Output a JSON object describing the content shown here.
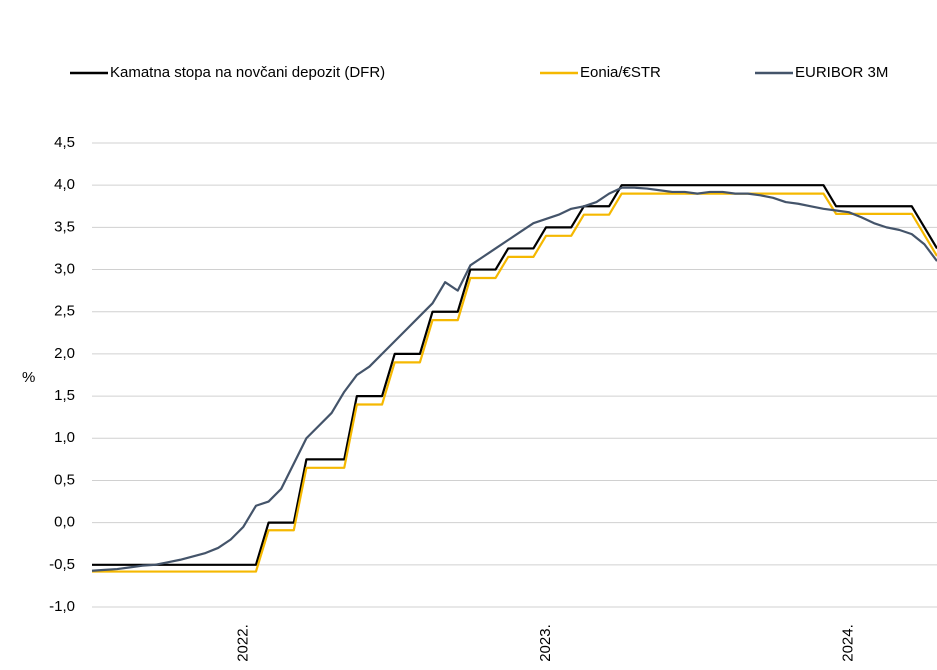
{
  "chart_data": {
    "type": "line",
    "ylabel": "%",
    "categories": [
      null,
      null,
      null,
      null,
      null,
      null,
      null,
      null,
      null,
      null,
      null,
      null,
      "2022.",
      null,
      null,
      null,
      null,
      null,
      null,
      null,
      null,
      null,
      null,
      null,
      null,
      null,
      null,
      null,
      null,
      null,
      null,
      null,
      null,
      null,
      null,
      null,
      "2023.",
      null,
      null,
      null,
      null,
      null,
      null,
      null,
      null,
      null,
      null,
      null,
      null,
      null,
      null,
      null,
      null,
      null,
      null,
      null,
      null,
      null,
      null,
      null,
      "2024.",
      null,
      null,
      null,
      null,
      null,
      null,
      null
    ],
    "series": [
      {
        "name": "Kamatna stopa na novčani depozit (DFR)",
        "color": "#000000",
        "values": [
          -0.5,
          -0.5,
          -0.5,
          -0.5,
          -0.5,
          -0.5,
          -0.5,
          -0.5,
          -0.5,
          -0.5,
          -0.5,
          -0.5,
          -0.5,
          -0.5,
          0,
          0,
          0,
          0.75,
          0.75,
          0.75,
          0.75,
          1.5,
          1.5,
          1.5,
          2,
          2,
          2,
          2.5,
          2.5,
          2.5,
          3,
          3,
          3,
          3.25,
          3.25,
          3.25,
          3.5,
          3.5,
          3.5,
          3.75,
          3.75,
          3.75,
          4,
          4,
          4,
          4,
          4,
          4,
          4,
          4,
          4,
          4,
          4,
          4,
          4,
          4,
          4,
          4,
          4,
          3.75,
          3.75,
          3.75,
          3.75,
          3.75,
          3.75,
          3.75,
          3.5,
          3.25
        ]
      },
      {
        "name": "Eonia/€STR",
        "color": "#f5b800",
        "values": [
          -0.58,
          -0.58,
          -0.58,
          -0.58,
          -0.58,
          -0.58,
          -0.58,
          -0.58,
          -0.58,
          -0.58,
          -0.58,
          -0.58,
          -0.58,
          -0.58,
          -0.09,
          -0.09,
          -0.09,
          0.65,
          0.65,
          0.65,
          0.65,
          1.4,
          1.4,
          1.4,
          1.9,
          1.9,
          1.9,
          2.4,
          2.4,
          2.4,
          2.9,
          2.9,
          2.9,
          3.15,
          3.15,
          3.15,
          3.4,
          3.4,
          3.4,
          3.65,
          3.65,
          3.65,
          3.9,
          3.9,
          3.9,
          3.9,
          3.9,
          3.9,
          3.9,
          3.9,
          3.9,
          3.9,
          3.9,
          3.9,
          3.9,
          3.9,
          3.9,
          3.9,
          3.9,
          3.66,
          3.66,
          3.66,
          3.66,
          3.66,
          3.66,
          3.66,
          3.41,
          3.16
        ]
      },
      {
        "name": "EURIBOR 3M",
        "color": "#44546a",
        "values": [
          -0.57,
          -0.56,
          -0.55,
          -0.53,
          -0.51,
          -0.5,
          -0.47,
          -0.44,
          -0.4,
          -0.36,
          -0.3,
          -0.2,
          -0.05,
          0.2,
          0.25,
          0.4,
          0.7,
          1.0,
          1.15,
          1.3,
          1.55,
          1.75,
          1.85,
          2.0,
          2.15,
          2.3,
          2.45,
          2.6,
          2.85,
          2.75,
          3.05,
          3.15,
          3.25,
          3.35,
          3.45,
          3.55,
          3.6,
          3.65,
          3.72,
          3.75,
          3.8,
          3.9,
          3.97,
          3.97,
          3.96,
          3.94,
          3.92,
          3.92,
          3.9,
          3.92,
          3.92,
          3.9,
          3.9,
          3.88,
          3.85,
          3.8,
          3.78,
          3.75,
          3.72,
          3.7,
          3.68,
          3.62,
          3.55,
          3.5,
          3.47,
          3.42,
          3.3,
          3.1
        ]
      }
    ],
    "ylim": [
      -1,
      4.5
    ],
    "yticks": [
      {
        "value": -1,
        "label": "-1,0"
      },
      {
        "value": -0.5,
        "label": "-0,5"
      },
      {
        "value": 0,
        "label": "0,0"
      },
      {
        "value": 0.5,
        "label": "0,5"
      },
      {
        "value": 1,
        "label": "1,0"
      },
      {
        "value": 1.5,
        "label": "1,5"
      },
      {
        "value": 2,
        "label": "2,0"
      },
      {
        "value": 2.5,
        "label": "2,5"
      },
      {
        "value": 3,
        "label": "3,0"
      },
      {
        "value": 3.5,
        "label": "3,5"
      },
      {
        "value": 4,
        "label": "4,0"
      },
      {
        "value": 4.5,
        "label": "4,5"
      }
    ],
    "grid": true,
    "legend": "top"
  }
}
